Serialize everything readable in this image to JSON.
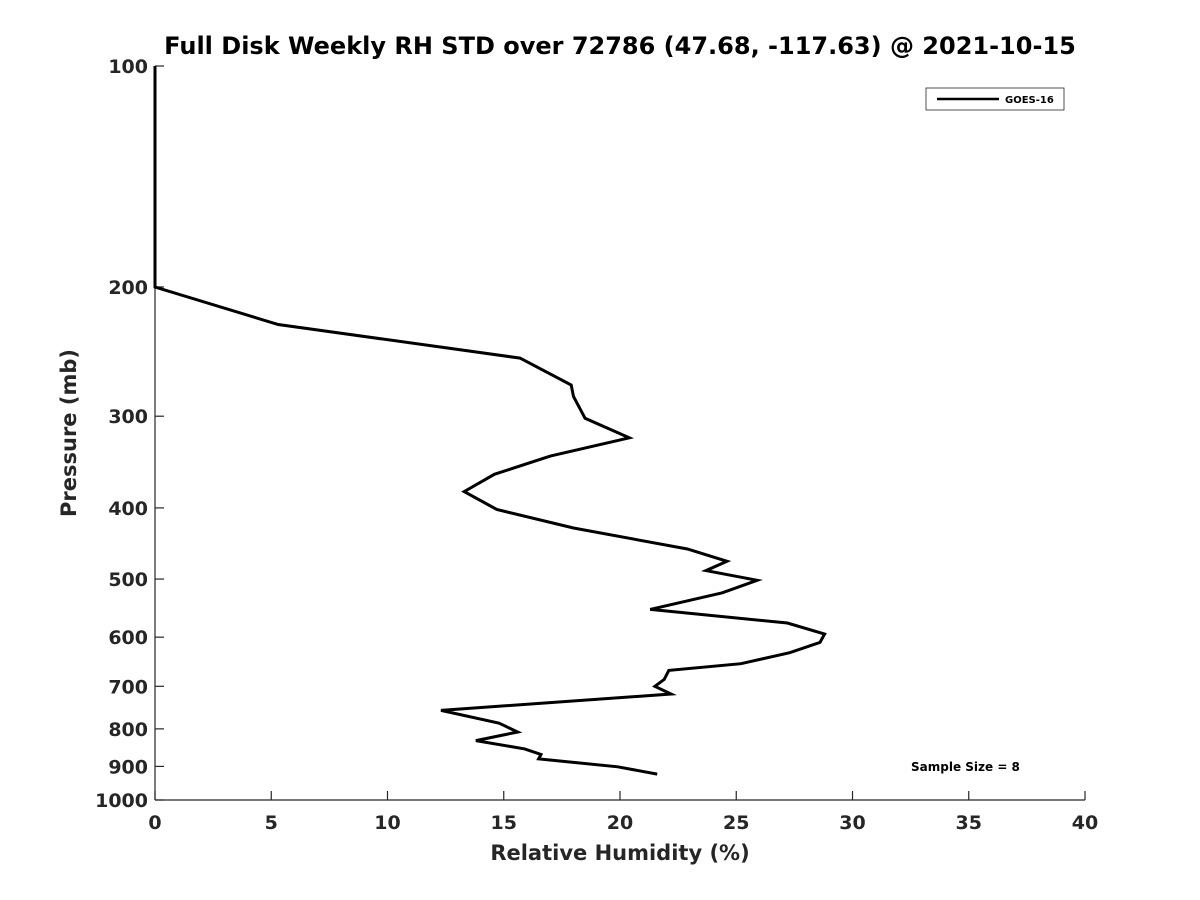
{
  "chart_data": {
    "type": "line",
    "title": "Full Disk Weekly RH STD over 72786 (47.68, -117.63) @ 2021-10-15",
    "xlabel": "Relative Humidity (%)",
    "ylabel": "Pressure (mb)",
    "xlim": [
      0,
      40
    ],
    "ylim": [
      100,
      1000
    ],
    "y_scale": "log",
    "y_reversed": true,
    "x_ticks": [
      0,
      5,
      10,
      15,
      20,
      25,
      30,
      35,
      40
    ],
    "y_ticks": [
      100,
      200,
      300,
      400,
      500,
      600,
      700,
      800,
      900,
      1000
    ],
    "grid": false,
    "legend_position": "top-right",
    "annotation": "Sample Size = 8",
    "series": [
      {
        "name": "GOES-16",
        "color": "#000000",
        "points": [
          [
            0,
            100
          ],
          [
            0,
            125
          ],
          [
            0,
            150
          ],
          [
            0,
            175
          ],
          [
            0,
            200
          ],
          [
            5.3,
            225
          ],
          [
            15.7,
            250
          ],
          [
            17.9,
            272
          ],
          [
            18.0,
            282
          ],
          [
            18.5,
            302
          ],
          [
            20.4,
            321
          ],
          [
            17.0,
            340
          ],
          [
            14.6,
            360
          ],
          [
            13.3,
            380
          ],
          [
            14.7,
            402
          ],
          [
            18.0,
            426
          ],
          [
            22.9,
            455
          ],
          [
            24.6,
            473
          ],
          [
            23.7,
            487
          ],
          [
            25.9,
            502
          ],
          [
            24.4,
            522
          ],
          [
            21.3,
            550
          ],
          [
            27.2,
            574
          ],
          [
            28.8,
            594
          ],
          [
            28.6,
            610
          ],
          [
            27.3,
            630
          ],
          [
            25.2,
            652
          ],
          [
            22.1,
            666
          ],
          [
            21.9,
            685
          ],
          [
            21.5,
            700
          ],
          [
            22.2,
            717
          ],
          [
            12.3,
            755
          ],
          [
            14.8,
            786
          ],
          [
            15.6,
            808
          ],
          [
            13.8,
            830
          ],
          [
            15.9,
            852
          ],
          [
            16.6,
            867
          ],
          [
            16.5,
            879
          ],
          [
            19.9,
            901
          ],
          [
            21.6,
            922
          ]
        ]
      }
    ]
  }
}
